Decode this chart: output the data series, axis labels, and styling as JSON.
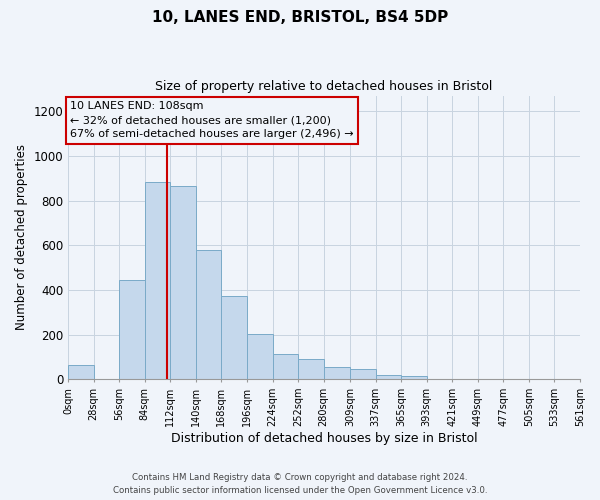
{
  "title": "10, LANES END, BRISTOL, BS4 5DP",
  "subtitle": "Size of property relative to detached houses in Bristol",
  "xlabel": "Distribution of detached houses by size in Bristol",
  "ylabel": "Number of detached properties",
  "bin_labels": [
    "0sqm",
    "28sqm",
    "56sqm",
    "84sqm",
    "112sqm",
    "140sqm",
    "168sqm",
    "196sqm",
    "224sqm",
    "252sqm",
    "280sqm",
    "309sqm",
    "337sqm",
    "365sqm",
    "393sqm",
    "421sqm",
    "449sqm",
    "477sqm",
    "505sqm",
    "533sqm",
    "561sqm"
  ],
  "bin_edges": [
    0,
    28,
    56,
    84,
    112,
    140,
    168,
    196,
    224,
    252,
    280,
    309,
    337,
    365,
    393,
    421,
    449,
    477,
    505,
    533,
    561
  ],
  "bar_heights": [
    65,
    0,
    445,
    885,
    865,
    580,
    375,
    205,
    115,
    90,
    55,
    45,
    20,
    15,
    0,
    0,
    0,
    0,
    0,
    0
  ],
  "bar_color": "#c5d8ec",
  "bar_edgecolor": "#7aaac8",
  "vline_x": 108,
  "vline_color": "#cc0000",
  "annotation_title": "10 LANES END: 108sqm",
  "annotation_line1": "← 32% of detached houses are smaller (1,200)",
  "annotation_line2": "67% of semi-detached houses are larger (2,496) →",
  "annotation_box_edgecolor": "#cc0000",
  "ylim": [
    0,
    1270
  ],
  "yticks": [
    0,
    200,
    400,
    600,
    800,
    1000,
    1200
  ],
  "footer_line1": "Contains HM Land Registry data © Crown copyright and database right 2024.",
  "footer_line2": "Contains public sector information licensed under the Open Government Licence v3.0.",
  "bg_color": "#f0f4fa"
}
